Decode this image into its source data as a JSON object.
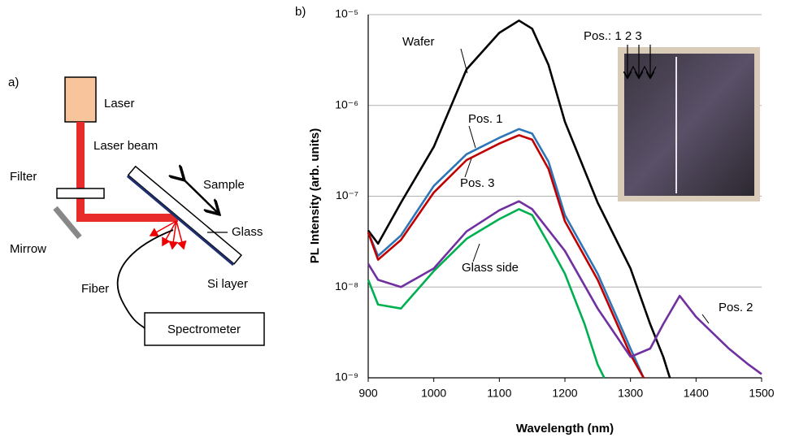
{
  "diagram": {
    "panel_label": "a)",
    "laser": "Laser",
    "laser_beam": "Laser beam",
    "filter": "Filter",
    "mirror": "Mirrow",
    "sample": "Sample",
    "glass": "Glass",
    "si_layer": "Si layer",
    "fiber": "Fiber",
    "spectrometer": "Spectrometer"
  },
  "chart_data": {
    "type": "line",
    "panel_label": "b)",
    "x_label": "Wavelength (nm)",
    "y_label": "PL Intensity (arb. units)",
    "log_y": true,
    "grid": true,
    "xlim": [
      900,
      1500
    ],
    "xticks": [
      900,
      1000,
      1100,
      1200,
      1300,
      1400,
      1500
    ],
    "ylim": [
      1e-09,
      1e-05
    ],
    "yticks": [
      {
        "value": 1e-09,
        "label": "10⁻⁹"
      },
      {
        "value": 1e-08,
        "label": "10⁻⁸"
      },
      {
        "value": 1e-07,
        "label": "10⁻⁷"
      },
      {
        "value": 1e-06,
        "label": "10⁻⁶"
      },
      {
        "value": 1e-05,
        "label": "10⁻⁵"
      }
    ],
    "inset_annotation": "Pos.: 1 2 3",
    "series": [
      {
        "name": "Wafer",
        "color": "#000000",
        "x": [
          900,
          915,
          950,
          1000,
          1050,
          1100,
          1130,
          1150,
          1175,
          1200,
          1250,
          1300,
          1330,
          1350,
          1360
        ],
        "values": [
          4.2e-08,
          3e-08,
          8.5e-08,
          3.5e-07,
          2.5e-06,
          6.3e-06,
          8.6e-06,
          7e-06,
          2.8e-06,
          6.6e-07,
          8.5e-08,
          1.6e-08,
          3.9e-09,
          1.7e-09,
          1e-09
        ]
      },
      {
        "name": "Pos. 1",
        "color": "#2e75b6",
        "x": [
          900,
          915,
          950,
          1000,
          1050,
          1100,
          1130,
          1150,
          1175,
          1200,
          1250,
          1300,
          1320
        ],
        "values": [
          4e-08,
          2.2e-08,
          3.7e-08,
          1.3e-07,
          2.9e-07,
          4.4e-07,
          5.5e-07,
          4.9e-07,
          2.4e-07,
          6.2e-08,
          1.4e-08,
          2.1e-09,
          1e-09
        ]
      },
      {
        "name": "Pos. 3",
        "color": "#c00000",
        "x": [
          900,
          915,
          950,
          1000,
          1050,
          1100,
          1130,
          1150,
          1175,
          1200,
          1250,
          1300,
          1320
        ],
        "values": [
          4e-08,
          2e-08,
          3.3e-08,
          1.1e-07,
          2.5e-07,
          3.8e-07,
          4.7e-07,
          4.2e-07,
          2e-07,
          5.3e-08,
          1.2e-08,
          1.8e-09,
          1e-09
        ]
      },
      {
        "name": "Glass side",
        "color": "#00b050",
        "x": [
          900,
          915,
          950,
          1000,
          1050,
          1100,
          1130,
          1150,
          1175,
          1200,
          1230,
          1250,
          1260
        ],
        "values": [
          1.2e-08,
          6.4e-09,
          5.8e-09,
          1.5e-08,
          3.4e-08,
          5.6e-08,
          7.2e-08,
          6.2e-08,
          3e-08,
          1.4e-08,
          3.9e-09,
          1.4e-09,
          1e-09
        ]
      },
      {
        "name": "Pos. 2",
        "color": "#7030a0",
        "x": [
          900,
          915,
          950,
          1000,
          1050,
          1100,
          1130,
          1150,
          1200,
          1250,
          1300,
          1330,
          1350,
          1375,
          1400,
          1450,
          1480,
          1500
        ],
        "values": [
          1.8e-08,
          1.2e-08,
          1e-08,
          1.6e-08,
          4.1e-08,
          7e-08,
          8.8e-08,
          7.2e-08,
          2.5e-08,
          5.8e-09,
          1.7e-09,
          2.1e-09,
          3.9e-09,
          8e-09,
          4.7e-09,
          2.1e-09,
          1.4e-09,
          1.1e-09
        ]
      }
    ]
  }
}
